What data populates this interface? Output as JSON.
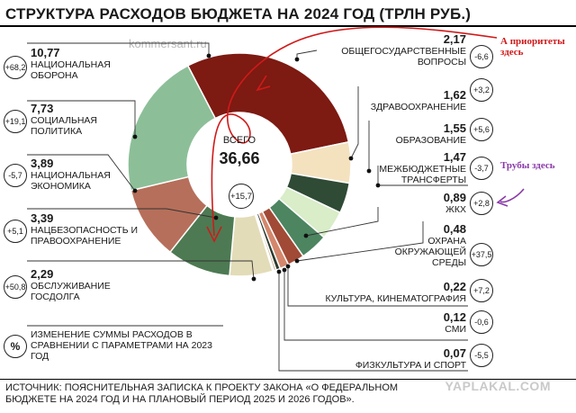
{
  "title": "СТРУКТУРА РАСХОДОВ БЮДЖЕТА НА 2024 ГОД (ТРЛН РУБ.)",
  "watermark": "kommersant.ru",
  "center": {
    "label": "ВСЕГО",
    "value": "36,66",
    "change": "+15,7"
  },
  "legend_note": {
    "symbol": "%",
    "text": "ИЗМЕНЕНИЕ СУММЫ РАСХОДОВ В СРАВНЕНИИ С ПАРАМЕТРАМИ НА 2023 ГОД"
  },
  "source": "ИСТОЧНИК: ПОЯСНИТЕЛЬНАЯ ЗАПИСКА К ПРОЕКТУ ЗАКОНА «О ФЕДЕРАЛЬНОМ БЮДЖЕТЕ НА 2024 ГОД И НА ПЛАНОВЫЙ ПЕРИОД 2025 И 2026 ГОДОВ».",
  "annotations": {
    "priorities": "А приоритеты здесь",
    "pipes": "Трубы здесь",
    "yaplakal": "YAPLAKAL.COM"
  },
  "chart_data": {
    "type": "pie",
    "total": 36.66,
    "total_change_pct": 15.7,
    "slices": [
      {
        "name": "НАЦИОНАЛЬНАЯ ОБОРОНА",
        "value": 10.77,
        "value_label": "10,77",
        "change": "+68,2",
        "color": "#7d1a12"
      },
      {
        "name": "ОБЩЕГОСУДАРСТВЕННЫЕ ВОПРОСЫ",
        "value": 2.17,
        "value_label": "2,17",
        "change": "-6,6",
        "color": "#f4e2bf"
      },
      {
        "name": "ЗДРАВООХРАНЕНИЕ",
        "value": 1.62,
        "value_label": "1,62",
        "change": "+3,2",
        "color": "#2f4a35"
      },
      {
        "name": "ОБРАЗОВАНИЕ",
        "value": 1.55,
        "value_label": "1,55",
        "change": "+5,6",
        "color": "#d8edc8"
      },
      {
        "name": "МЕЖБЮДЖЕТНЫЕ ТРАНСФЕРТЫ",
        "value": 1.47,
        "value_label": "1,47",
        "change": "-3,7",
        "color": "#4c8560"
      },
      {
        "name": "ЖКХ",
        "value": 0.89,
        "value_label": "0,89",
        "change": "+2,8",
        "color": "#a14a36"
      },
      {
        "name": "ОХРАНА ОКРУЖАЮЩЕЙ СРЕДЫ",
        "value": 0.48,
        "value_label": "0,48",
        "change": "+37,5",
        "color": "#d4876c"
      },
      {
        "name": "КУЛЬТУРА, КИНЕМАТОГРАФИЯ",
        "value": 0.22,
        "value_label": "0,22",
        "change": "+7,2",
        "color": "#2b3a2e"
      },
      {
        "name": "СМИ",
        "value": 0.12,
        "value_label": "0,12",
        "change": "-0,6",
        "color": "#c9a98a"
      },
      {
        "name": "ФИЗКУЛЬТУРА И СПОРТ",
        "value": 0.07,
        "value_label": "0,07",
        "change": "-5,5",
        "color": "#6b6b4a"
      },
      {
        "name": "ОБСЛУЖИВАНИЕ ГОСДОЛГА",
        "value": 2.29,
        "value_label": "2,29",
        "change": "+50,8",
        "color": "#e3dcb8"
      },
      {
        "name": "НАЦБЕЗОПАСНОСТЬ И ПРАВООХРАНЕНИЕ",
        "value": 3.39,
        "value_label": "3,39",
        "change": "+5,1",
        "color": "#4d7a52"
      },
      {
        "name": "НАЦИОНАЛЬНАЯ ЭКОНОМИКА",
        "value": 3.89,
        "value_label": "3,89",
        "change": "-5,7",
        "color": "#b66f5a"
      },
      {
        "name": "СОЦИАЛЬНАЯ ПОЛИТИКА",
        "value": 7.73,
        "value_label": "7,73",
        "change": "+19,1",
        "color": "#8cbf98"
      }
    ]
  }
}
